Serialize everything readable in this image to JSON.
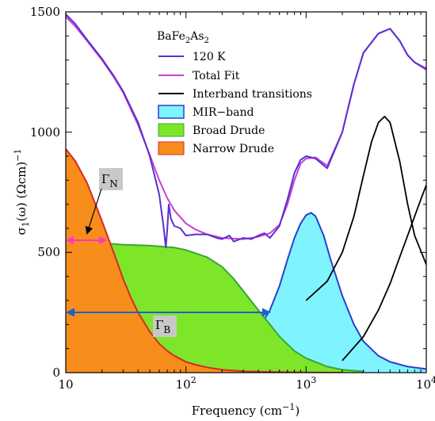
{
  "chart_data": {
    "type": "line",
    "xlabel": "Frequency (cm⁻¹)",
    "ylabel": "σ₁(ω) (Ωcm)⁻¹",
    "x_scale": "log",
    "xlim": [
      10,
      10000
    ],
    "ylim": [
      0,
      1500
    ],
    "x_ticks": [
      "10",
      "10²",
      "10³",
      "10⁴"
    ],
    "y_ticks": [
      "0",
      "500",
      "1000",
      "1500"
    ],
    "legend_title": "BaFe₂As₂",
    "legend_position": "top-right",
    "series": [
      {
        "name": "120 K",
        "color": "#5b2fd0",
        "kind": "line",
        "x": [
          10,
          12,
          15,
          20,
          25,
          30,
          40,
          50,
          60,
          65,
          68,
          70,
          72,
          75,
          80,
          90,
          100,
          120,
          150,
          180,
          200,
          230,
          250,
          300,
          350,
          400,
          450,
          500,
          600,
          700,
          800,
          900,
          1000,
          1200,
          1500,
          2000,
          2500,
          3000,
          4000,
          5000,
          6000,
          7000,
          8000,
          10000
        ],
        "y": [
          1490,
          1450,
          1385,
          1305,
          1235,
          1170,
          1040,
          900,
          740,
          610,
          520,
          600,
          700,
          640,
          610,
          600,
          570,
          575,
          575,
          560,
          555,
          570,
          545,
          560,
          555,
          570,
          580,
          560,
          610,
          720,
          830,
          885,
          900,
          890,
          850,
          1000,
          1200,
          1330,
          1410,
          1430,
          1380,
          1320,
          1290,
          1260
        ]
      },
      {
        "name": "Total Fit",
        "color": "#c93ed6",
        "kind": "line",
        "x": [
          10,
          12,
          15,
          20,
          25,
          30,
          40,
          50,
          60,
          70,
          80,
          100,
          120,
          150,
          200,
          300,
          400,
          500,
          600,
          700,
          800,
          900,
          1000,
          1200,
          1500,
          2000,
          2500,
          3000,
          4000,
          5000,
          6000,
          7000,
          8000,
          10000
        ],
        "y": [
          1480,
          1440,
          1380,
          1300,
          1230,
          1165,
          1030,
          905,
          800,
          725,
          675,
          620,
          595,
          575,
          560,
          555,
          565,
          580,
          615,
          700,
          800,
          870,
          890,
          895,
          860,
          1000,
          1200,
          1330,
          1410,
          1430,
          1380,
          1320,
          1290,
          1265
        ]
      },
      {
        "name": "Interband transitions",
        "color": "#000000",
        "kind": "line",
        "x": [
          1000,
          1500,
          2000,
          2500,
          3000,
          3500,
          4000,
          4500,
          5000,
          6000,
          7000,
          8000,
          10000
        ],
        "y": [
          300,
          380,
          500,
          650,
          820,
          960,
          1040,
          1065,
          1040,
          880,
          700,
          570,
          450
        ]
      },
      {
        "name": "Interband transitions",
        "color": "#000000",
        "kind": "line",
        "x": [
          2000,
          3000,
          4000,
          5000,
          6000,
          7000,
          8000,
          9000,
          10000
        ],
        "y": [
          50,
          150,
          260,
          370,
          480,
          570,
          650,
          720,
          780
        ]
      },
      {
        "name": "MIR−band",
        "color": "#2a3fd0",
        "fill": "#7ff4ff",
        "kind": "area",
        "x": [
          200,
          300,
          400,
          500,
          600,
          700,
          800,
          900,
          1000,
          1100,
          1200,
          1400,
          1600,
          2000,
          2500,
          3000,
          4000,
          5000,
          7000,
          10000
        ],
        "y": [
          45,
          100,
          180,
          260,
          360,
          470,
          560,
          620,
          655,
          665,
          650,
          570,
          470,
          320,
          200,
          130,
          70,
          45,
          25,
          15
        ]
      },
      {
        "name": "Broad Drude",
        "color": "#3aa53a",
        "fill": "#7de629",
        "kind": "area",
        "x": [
          10,
          15,
          20,
          25,
          30,
          50,
          80,
          100,
          150,
          200,
          250,
          300,
          400,
          500,
          600,
          800,
          1000,
          1500,
          2000,
          3000
        ],
        "y": [
          540,
          540,
          538,
          535,
          532,
          528,
          520,
          510,
          480,
          440,
          390,
          340,
          260,
          200,
          150,
          90,
          60,
          25,
          12,
          5
        ]
      },
      {
        "name": "Narrow Drude",
        "color": "#d42a2a",
        "fill": "#f78d1b",
        "kind": "area",
        "x": [
          10,
          12,
          15,
          18,
          20,
          25,
          30,
          35,
          40,
          50,
          60,
          70,
          80,
          100,
          120,
          150,
          200,
          300,
          500,
          1000,
          2000
        ],
        "y": [
          930,
          880,
          790,
          690,
          630,
          500,
          390,
          310,
          250,
          170,
          120,
          90,
          70,
          45,
          33,
          22,
          12,
          6,
          3,
          1,
          0
        ]
      }
    ],
    "annotations": [
      {
        "text": "Γ",
        "subscript": "N",
        "arrow": "pink",
        "x_from": 10,
        "x_to": 20,
        "y": 550
      },
      {
        "text": "Γ",
        "subscript": "B",
        "arrow": "blue",
        "x_from": 10,
        "x_to": 500,
        "y": 250
      }
    ]
  }
}
